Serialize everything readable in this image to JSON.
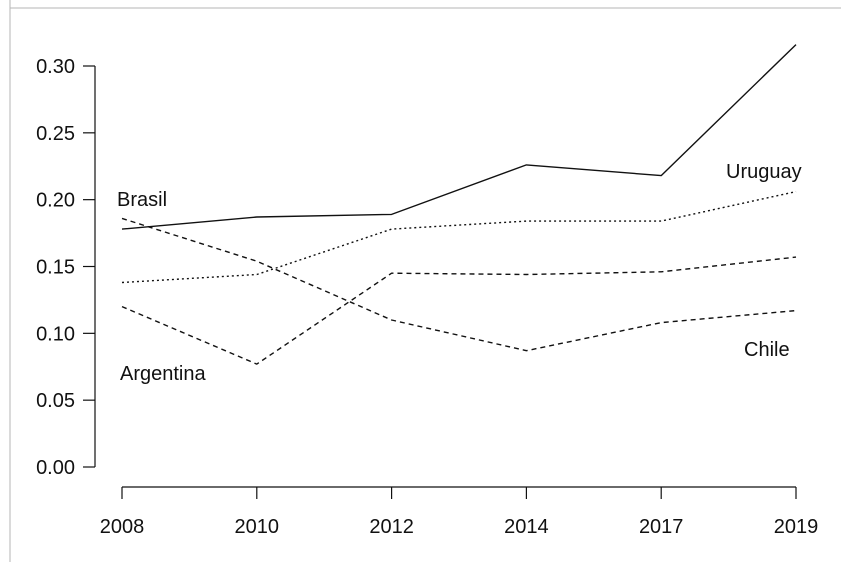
{
  "chart_data": {
    "type": "line",
    "title": "",
    "xlabel": "",
    "ylabel": "",
    "categories": [
      "2008",
      "2010",
      "2012",
      "2014",
      "2017",
      "2019"
    ],
    "ylim": [
      0,
      0.3
    ],
    "y_ticks": [
      "0.00",
      "0.05",
      "0.10",
      "0.15",
      "0.20",
      "0.25",
      "0.30"
    ],
    "grid": false,
    "legend": "none",
    "series": [
      {
        "name": "Brasil",
        "values": [
          0.186,
          0.154,
          0.11,
          0.087,
          0.108,
          0.117
        ],
        "line_style": "dashed",
        "color": "#111111"
      },
      {
        "name": "Uruguay",
        "values": [
          0.178,
          0.187,
          0.189,
          0.226,
          0.218,
          0.316
        ],
        "line_style": "solid",
        "color": "#111111"
      },
      {
        "name": "Argentina",
        "values": [
          0.12,
          0.077,
          0.145,
          0.144,
          0.146,
          0.157
        ],
        "line_style": "dashed",
        "color": "#111111"
      },
      {
        "name": "Chile",
        "values": [
          0.138,
          0.144,
          0.178,
          0.184,
          0.184,
          0.206
        ],
        "line_style": "dotted",
        "color": "#111111"
      }
    ],
    "series_labels": [
      "Brasil",
      "Uruguay",
      "Argentina",
      "Chile"
    ]
  }
}
